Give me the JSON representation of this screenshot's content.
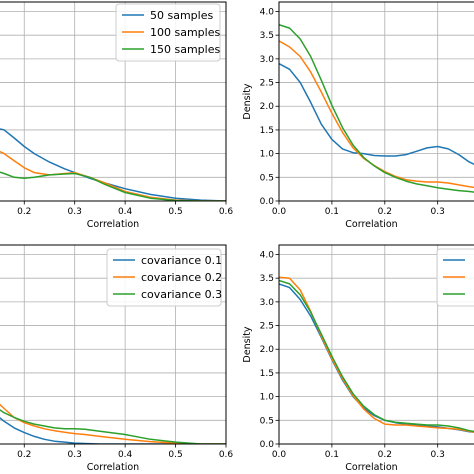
{
  "chart_data": [
    {
      "type": "line",
      "xlabel": "Correlation",
      "ylabel": "",
      "xticks": [
        "0.2",
        "0.3",
        "0.4",
        "0.5",
        "0.6"
      ],
      "yticks": [],
      "xlim": [
        0.14,
        0.6
      ],
      "ylim": [
        0,
        4.2
      ],
      "grid": true,
      "legend": "top-right",
      "series": [
        {
          "name": "50 samples",
          "color": "#1f77b4",
          "x": [
            0.14,
            0.16,
            0.18,
            0.2,
            0.22,
            0.25,
            0.28,
            0.3,
            0.33,
            0.36,
            0.4,
            0.45,
            0.5,
            0.55,
            0.6
          ],
          "y": [
            1.55,
            1.5,
            1.33,
            1.15,
            1.0,
            0.82,
            0.68,
            0.6,
            0.48,
            0.38,
            0.26,
            0.14,
            0.06,
            0.02,
            0.0
          ]
        },
        {
          "name": "100 samples",
          "color": "#ff7f0e",
          "x": [
            0.14,
            0.16,
            0.18,
            0.2,
            0.22,
            0.25,
            0.28,
            0.3,
            0.33,
            0.36,
            0.4,
            0.45,
            0.5,
            0.55,
            0.6
          ],
          "y": [
            1.1,
            1.0,
            0.85,
            0.7,
            0.6,
            0.55,
            0.58,
            0.6,
            0.5,
            0.38,
            0.2,
            0.08,
            0.02,
            0.0,
            0.0
          ]
        },
        {
          "name": "150 samples",
          "color": "#2ca02c",
          "x": [
            0.14,
            0.16,
            0.18,
            0.2,
            0.22,
            0.25,
            0.28,
            0.3,
            0.33,
            0.36,
            0.4,
            0.45,
            0.5,
            0.55,
            0.6
          ],
          "y": [
            0.65,
            0.58,
            0.5,
            0.48,
            0.5,
            0.55,
            0.57,
            0.58,
            0.5,
            0.35,
            0.18,
            0.06,
            0.01,
            0.0,
            0.0
          ]
        }
      ]
    },
    {
      "type": "line",
      "xlabel": "Correlation",
      "ylabel": "Density",
      "xticks": [
        "0.0",
        "0.1",
        "0.2",
        "0.3"
      ],
      "yticks": [
        "0.0",
        "0.5",
        "1.0",
        "1.5",
        "2.0",
        "2.5",
        "3.0",
        "3.5",
        "4.0"
      ],
      "xlim": [
        0.0,
        0.38
      ],
      "ylim": [
        0,
        4.2
      ],
      "grid": true,
      "legend": "",
      "series": [
        {
          "name": "",
          "color": "#1f77b4",
          "x": [
            0,
            0.02,
            0.04,
            0.06,
            0.08,
            0.1,
            0.12,
            0.14,
            0.16,
            0.18,
            0.2,
            0.22,
            0.24,
            0.26,
            0.28,
            0.3,
            0.32,
            0.34,
            0.36,
            0.38
          ],
          "y": [
            2.9,
            2.78,
            2.5,
            2.08,
            1.62,
            1.3,
            1.1,
            1.02,
            1.0,
            0.96,
            0.95,
            0.95,
            0.98,
            1.05,
            1.12,
            1.15,
            1.1,
            0.98,
            0.82,
            0.72
          ]
        },
        {
          "name": "",
          "color": "#ff7f0e",
          "x": [
            0,
            0.02,
            0.04,
            0.06,
            0.08,
            0.1,
            0.12,
            0.14,
            0.16,
            0.18,
            0.2,
            0.22,
            0.24,
            0.26,
            0.28,
            0.3,
            0.32,
            0.34,
            0.36,
            0.38
          ],
          "y": [
            3.38,
            3.25,
            3.05,
            2.72,
            2.3,
            1.85,
            1.45,
            1.12,
            0.9,
            0.75,
            0.62,
            0.52,
            0.45,
            0.42,
            0.4,
            0.4,
            0.38,
            0.34,
            0.3,
            0.27
          ]
        },
        {
          "name": "",
          "color": "#2ca02c",
          "x": [
            0,
            0.02,
            0.04,
            0.06,
            0.08,
            0.1,
            0.12,
            0.14,
            0.16,
            0.18,
            0.2,
            0.22,
            0.24,
            0.26,
            0.28,
            0.3,
            0.32,
            0.34,
            0.36,
            0.38
          ],
          "y": [
            3.72,
            3.65,
            3.42,
            3.05,
            2.55,
            2.02,
            1.55,
            1.18,
            0.92,
            0.74,
            0.6,
            0.5,
            0.42,
            0.36,
            0.32,
            0.28,
            0.25,
            0.22,
            0.2,
            0.17
          ]
        }
      ]
    },
    {
      "type": "line",
      "xlabel": "Correlation",
      "ylabel": "",
      "xticks": [
        "0.2",
        "0.3",
        "0.4",
        "0.5",
        "0.6"
      ],
      "yticks": [],
      "xlim": [
        0.14,
        0.6
      ],
      "ylim": [
        0,
        4.2
      ],
      "grid": true,
      "legend": "top-right",
      "series": [
        {
          "name": "covariance 0.1",
          "color": "#1f77b4",
          "x": [
            0.14,
            0.16,
            0.18,
            0.2,
            0.22,
            0.24,
            0.26,
            0.28,
            0.3,
            0.32,
            0.35,
            0.4,
            0.45,
            0.5,
            0.55,
            0.6
          ],
          "y": [
            0.65,
            0.48,
            0.34,
            0.24,
            0.16,
            0.1,
            0.06,
            0.04,
            0.02,
            0.01,
            0.0,
            0.0,
            0.0,
            0.0,
            0.0,
            0.0
          ]
        },
        {
          "name": "covariance 0.2",
          "color": "#ff7f0e",
          "x": [
            0.14,
            0.16,
            0.18,
            0.2,
            0.22,
            0.24,
            0.26,
            0.28,
            0.3,
            0.32,
            0.35,
            0.4,
            0.45,
            0.5,
            0.55,
            0.6
          ],
          "y": [
            0.95,
            0.75,
            0.56,
            0.45,
            0.38,
            0.32,
            0.28,
            0.25,
            0.22,
            0.2,
            0.16,
            0.1,
            0.05,
            0.02,
            0.0,
            0.0
          ]
        },
        {
          "name": "covariance 0.3",
          "color": "#2ca02c",
          "x": [
            0.14,
            0.16,
            0.18,
            0.2,
            0.22,
            0.24,
            0.26,
            0.28,
            0.3,
            0.32,
            0.35,
            0.4,
            0.45,
            0.5,
            0.55,
            0.6
          ],
          "y": [
            0.8,
            0.66,
            0.56,
            0.48,
            0.42,
            0.38,
            0.34,
            0.32,
            0.32,
            0.31,
            0.27,
            0.2,
            0.1,
            0.04,
            0.0,
            0.0
          ]
        }
      ]
    },
    {
      "type": "line",
      "xlabel": "Correlation",
      "ylabel": "Density",
      "xticks": [
        "0.0",
        "0.1",
        "0.2",
        "0.3"
      ],
      "yticks": [
        "0.0",
        "0.5",
        "1.0",
        "1.5",
        "2.0",
        "2.5",
        "3.0",
        "3.5",
        "4.0"
      ],
      "xlim": [
        0.0,
        0.38
      ],
      "ylim": [
        0,
        4.2
      ],
      "grid": true,
      "legend": "top-right",
      "series": [
        {
          "name": "",
          "color": "#1f77b4",
          "x": [
            0,
            0.02,
            0.04,
            0.06,
            0.08,
            0.1,
            0.12,
            0.14,
            0.16,
            0.18,
            0.2,
            0.22,
            0.24,
            0.26,
            0.28,
            0.3,
            0.32,
            0.34,
            0.36,
            0.38
          ],
          "y": [
            3.38,
            3.3,
            3.05,
            2.7,
            2.25,
            1.78,
            1.35,
            1.0,
            0.76,
            0.6,
            0.5,
            0.45,
            0.42,
            0.4,
            0.38,
            0.36,
            0.33,
            0.3,
            0.26,
            0.24
          ]
        },
        {
          "name": "",
          "color": "#ff7f0e",
          "x": [
            0,
            0.02,
            0.04,
            0.06,
            0.08,
            0.1,
            0.12,
            0.14,
            0.16,
            0.18,
            0.2,
            0.22,
            0.24,
            0.26,
            0.28,
            0.3,
            0.32,
            0.34,
            0.36,
            0.38
          ],
          "y": [
            3.52,
            3.5,
            3.25,
            2.8,
            2.28,
            1.8,
            1.38,
            1.02,
            0.74,
            0.54,
            0.42,
            0.4,
            0.4,
            0.38,
            0.36,
            0.34,
            0.33,
            0.31,
            0.27,
            0.22
          ]
        },
        {
          "name": "",
          "color": "#2ca02c",
          "x": [
            0,
            0.02,
            0.04,
            0.06,
            0.08,
            0.1,
            0.12,
            0.14,
            0.16,
            0.18,
            0.2,
            0.22,
            0.24,
            0.26,
            0.28,
            0.3,
            0.32,
            0.34,
            0.36,
            0.38
          ],
          "y": [
            3.45,
            3.38,
            3.15,
            2.78,
            2.32,
            1.85,
            1.42,
            1.06,
            0.8,
            0.62,
            0.5,
            0.46,
            0.44,
            0.42,
            0.4,
            0.4,
            0.38,
            0.34,
            0.28,
            0.25
          ]
        }
      ]
    }
  ]
}
